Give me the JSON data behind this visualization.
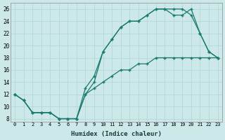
{
  "xlabel": "Humidex (Indice chaleur)",
  "line_color": "#1a7a6e",
  "bg_color": "#cce8e8",
  "grid_color": "#aad4d4",
  "xlim": [
    -0.5,
    23.5
  ],
  "ylim": [
    7.5,
    27
  ],
  "xticks": [
    0,
    1,
    2,
    3,
    4,
    5,
    6,
    7,
    8,
    9,
    10,
    11,
    12,
    13,
    14,
    15,
    16,
    17,
    18,
    19,
    20,
    21,
    22,
    23
  ],
  "yticks": [
    8,
    10,
    12,
    14,
    16,
    18,
    20,
    22,
    24,
    26
  ],
  "line1_x": [
    0,
    1,
    2,
    3,
    4,
    5,
    6,
    7,
    8,
    9,
    10,
    11,
    12,
    13,
    14,
    15,
    16,
    17,
    18,
    19,
    20,
    21,
    22,
    23
  ],
  "line1_y": [
    12,
    11,
    9,
    9,
    9,
    8,
    8,
    8,
    13,
    15,
    19,
    21,
    23,
    24,
    24,
    25,
    26,
    26,
    26,
    26,
    25,
    22,
    19,
    18
  ],
  "line2_x": [
    0,
    1,
    2,
    3,
    4,
    5,
    6,
    7,
    8,
    9,
    10,
    11,
    12,
    13,
    14,
    15,
    16,
    17,
    18,
    19,
    20,
    21,
    22,
    23
  ],
  "line2_y": [
    12,
    11,
    9,
    9,
    9,
    8,
    8,
    8,
    12,
    13,
    14,
    15,
    16,
    16,
    17,
    17,
    18,
    18,
    18,
    18,
    18,
    18,
    18,
    18
  ],
  "line3_x": [
    0,
    1,
    2,
    3,
    4,
    5,
    6,
    7,
    8,
    9,
    10,
    11,
    12,
    13,
    14,
    15,
    16,
    17,
    18,
    19,
    20,
    21,
    22,
    23
  ],
  "line3_y": [
    12,
    11,
    9,
    9,
    9,
    8,
    8,
    8,
    12,
    14,
    19,
    21,
    23,
    24,
    24,
    25,
    26,
    26,
    25,
    25,
    26,
    22,
    19,
    18
  ]
}
